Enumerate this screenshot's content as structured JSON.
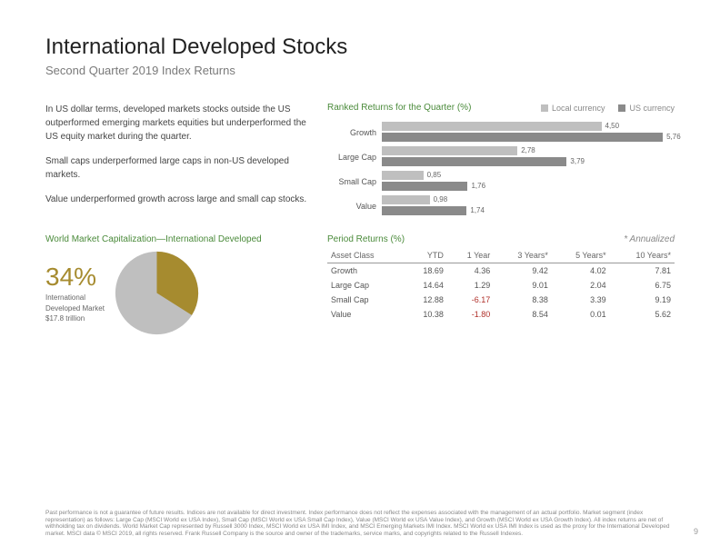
{
  "header": {
    "title": "International Developed Stocks",
    "subtitle": "Second Quarter 2019 Index Returns"
  },
  "body_paragraphs": [
    "In US dollar terms, developed markets stocks outside the US outperformed emerging markets equities but underperformed the US equity market during the quarter.",
    "Small caps underperformed large caps in non-US developed markets.",
    "Value underperformed growth across large and small cap stocks."
  ],
  "barchart": {
    "title": "Ranked Returns for the Quarter (%)",
    "legend": {
      "local": "Local currency",
      "us": "US currency"
    },
    "colors": {
      "local": "#bfbfbf",
      "us": "#8a8a8a"
    },
    "xmax": 6.0,
    "rows": [
      {
        "label": "Growth",
        "local": 4.5,
        "us": 5.76
      },
      {
        "label": "Large Cap",
        "local": 2.78,
        "us": 3.79
      },
      {
        "label": "Small Cap",
        "local": 0.85,
        "us": 1.76
      },
      {
        "label": "Value",
        "local": 0.98,
        "us": 1.74
      }
    ]
  },
  "market_cap": {
    "title": "World Market Capitalization—International Developed",
    "percent": "34%",
    "sub1": "International",
    "sub2": "Developed Market",
    "sub3": "$17.8 trillion",
    "pie": {
      "slice_pct": 34,
      "slice_color": "#a68b2f",
      "rest_color": "#bfbfbf"
    }
  },
  "period_table": {
    "title": "Period Returns (%)",
    "annualized": "* Annualized",
    "columns": [
      "Asset Class",
      "YTD",
      "1 Year",
      "3 Years*",
      "5 Years*",
      "10 Years*"
    ],
    "rows": [
      [
        "Growth",
        "18.69",
        "4.36",
        "9.42",
        "4.02",
        "7.81"
      ],
      [
        "Large Cap",
        "14.64",
        "1.29",
        "9.01",
        "2.04",
        "6.75"
      ],
      [
        "Small Cap",
        "12.88",
        "-6.17",
        "8.38",
        "3.39",
        "9.19"
      ],
      [
        "Value",
        "10.38",
        "-1.80",
        "8.54",
        "0.01",
        "5.62"
      ]
    ]
  },
  "disclaimer": "Past performance is not a guarantee of future results. Indices are not available for direct investment. Index performance does not reflect the expenses associated with the management of an actual portfolio. Market segment (index representation) as follows: Large Cap (MSCI World ex USA Index), Small Cap (MSCI World ex USA Small Cap Index), Value (MSCI World ex USA Value Index), and Growth (MSCI World ex USA Growth Index). All index returns are net of withholding tax on dividends. World Market Cap represented by Russell 3000 Index, MSCI World ex USA IMI Index, and MSCI Emerging Markets IMI Index. MSCI World ex USA IMI Index is used as the proxy for the International Developed market. MSCI data © MSCI 2019, all rights reserved. Frank Russell Company is the source and owner of the trademarks, service marks, and copyrights related to the Russell Indexes.",
  "page_number": "9"
}
